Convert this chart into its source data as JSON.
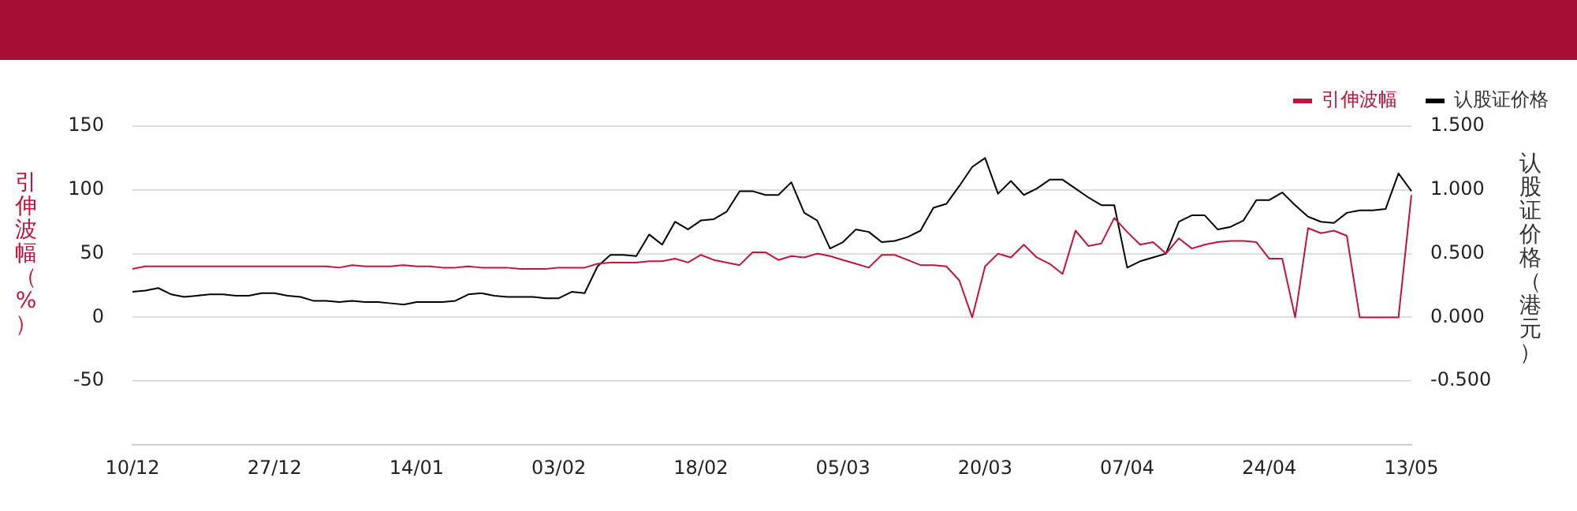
{
  "chart_data": {
    "type": "line",
    "categories": [
      "10/12",
      null,
      null,
      null,
      null,
      null,
      null,
      null,
      null,
      null,
      null,
      "27/12",
      null,
      null,
      null,
      null,
      null,
      null,
      null,
      null,
      null,
      null,
      "14/01",
      null,
      null,
      null,
      null,
      null,
      null,
      null,
      null,
      null,
      null,
      "03/02",
      null,
      null,
      null,
      null,
      null,
      null,
      null,
      null,
      null,
      null,
      "18/02",
      null,
      null,
      null,
      null,
      null,
      null,
      null,
      null,
      null,
      null,
      "05/03",
      null,
      null,
      null,
      null,
      null,
      null,
      null,
      null,
      null,
      null,
      "20/03",
      null,
      null,
      null,
      null,
      null,
      null,
      null,
      null,
      null,
      null,
      "07/04",
      null,
      null,
      null,
      null,
      null,
      null,
      null,
      null,
      null,
      null,
      "24/04",
      null,
      null,
      null,
      null,
      null,
      null,
      null,
      null,
      null,
      null,
      "13/05"
    ],
    "series": [
      {
        "name": "引伸波幅",
        "color": "#c0143c",
        "values": [
          38,
          40,
          40,
          40,
          40,
          40,
          40,
          40,
          40,
          40,
          40,
          40,
          40,
          40,
          40,
          40,
          39,
          41,
          40,
          40,
          40,
          41,
          40,
          40,
          39,
          39,
          40,
          39,
          39,
          39,
          38,
          38,
          38,
          39,
          39,
          39,
          42,
          43,
          43,
          43,
          44,
          44,
          46,
          43,
          49,
          45,
          43,
          41,
          51,
          51,
          45,
          48,
          47,
          50,
          48,
          45,
          42,
          39,
          49,
          49,
          45,
          41,
          41,
          40,
          29,
          0,
          40,
          50,
          47,
          57,
          47,
          42,
          34,
          68,
          56,
          58,
          78,
          67,
          57,
          59,
          50,
          62,
          54,
          57,
          59,
          60,
          60,
          59,
          46,
          46,
          0,
          70,
          66,
          68,
          64,
          0,
          0,
          0,
          0,
          96
        ]
      },
      {
        "name": "认股证价格",
        "color": "#000000",
        "axis": "y2",
        "values": [
          0.2,
          0.21,
          0.23,
          0.18,
          0.16,
          0.17,
          0.18,
          0.18,
          0.17,
          0.17,
          0.19,
          0.19,
          0.17,
          0.16,
          0.13,
          0.13,
          0.12,
          0.13,
          0.12,
          0.12,
          0.11,
          0.1,
          0.12,
          0.12,
          0.12,
          0.13,
          0.18,
          0.19,
          0.17,
          0.16,
          0.16,
          0.16,
          0.15,
          0.15,
          0.2,
          0.19,
          0.4,
          0.49,
          0.49,
          0.48,
          0.65,
          0.57,
          0.75,
          0.69,
          0.76,
          0.77,
          0.83,
          0.99,
          0.99,
          0.96,
          0.96,
          1.06,
          0.82,
          0.76,
          0.54,
          0.59,
          0.69,
          0.67,
          0.59,
          0.6,
          0.63,
          0.68,
          0.86,
          0.89,
          1.03,
          1.18,
          1.25,
          0.97,
          1.07,
          0.96,
          1.01,
          1.08,
          1.08,
          1.01,
          0.94,
          0.88,
          0.88,
          0.39,
          0.44,
          0.47,
          0.5,
          0.75,
          0.8,
          0.8,
          0.69,
          0.71,
          0.76,
          0.92,
          0.92,
          0.98,
          0.88,
          0.79,
          0.75,
          0.74,
          0.82,
          0.84,
          0.84,
          0.85,
          1.13,
          0.99
        ]
      }
    ],
    "ylabel": "引伸波幅（%）",
    "y2label": "认股证价格（港元）",
    "ylim": [
      -100,
      150
    ],
    "yticks": [
      {
        "value": -100,
        "label": null
      },
      -50,
      0,
      50,
      100,
      150
    ],
    "y2lim": [
      -1,
      1.5
    ],
    "y2ticks": [
      {
        "value": -1,
        "label": null
      },
      {
        "value": -0.5,
        "label": "-0.500"
      },
      {
        "value": 0,
        "label": "0.000"
      },
      {
        "value": 0.5,
        "label": "0.500"
      },
      {
        "value": 1,
        "label": "1.000"
      },
      {
        "value": 1.5,
        "label": "1.500"
      }
    ],
    "grid": "y",
    "legend": "top right",
    "marker": "none",
    "line_style": "solid"
  }
}
